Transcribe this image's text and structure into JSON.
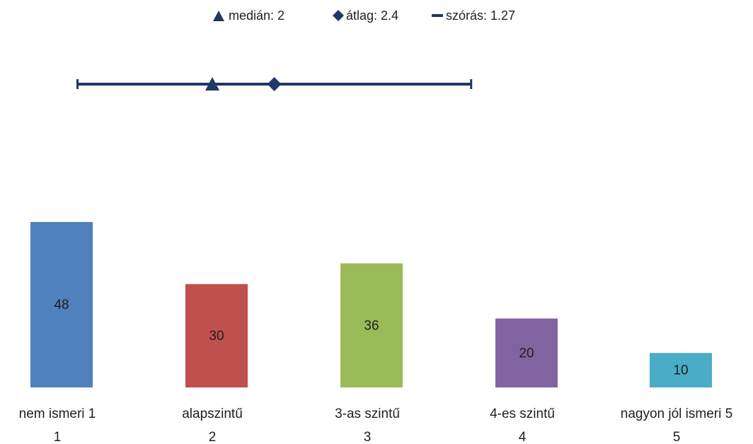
{
  "chart_data": {
    "type": "bar",
    "categories": [
      "nem ismeri 1",
      "alapszintű",
      "3-as szintű",
      "4-es szintű",
      "nagyon jól ismeri 5"
    ],
    "category_numbers": [
      "1",
      "2",
      "3",
      "4",
      "5"
    ],
    "values": [
      48,
      30,
      36,
      20,
      10
    ],
    "colors": [
      "#4f81bd",
      "#c0504d",
      "#9bbb59",
      "#8064a2",
      "#4bacc6"
    ],
    "value_labels": [
      "48",
      "30",
      "36",
      "20",
      "10"
    ],
    "statistics": {
      "median": 2,
      "mean": 2.4,
      "std_dev": 1.27,
      "marker_color": "#1f3864"
    },
    "legend": {
      "median": "medián: 2",
      "mean": "átlag: 2.4",
      "std_dev": "szórás: 1.27",
      "position": "top-center"
    },
    "grid": false
  }
}
